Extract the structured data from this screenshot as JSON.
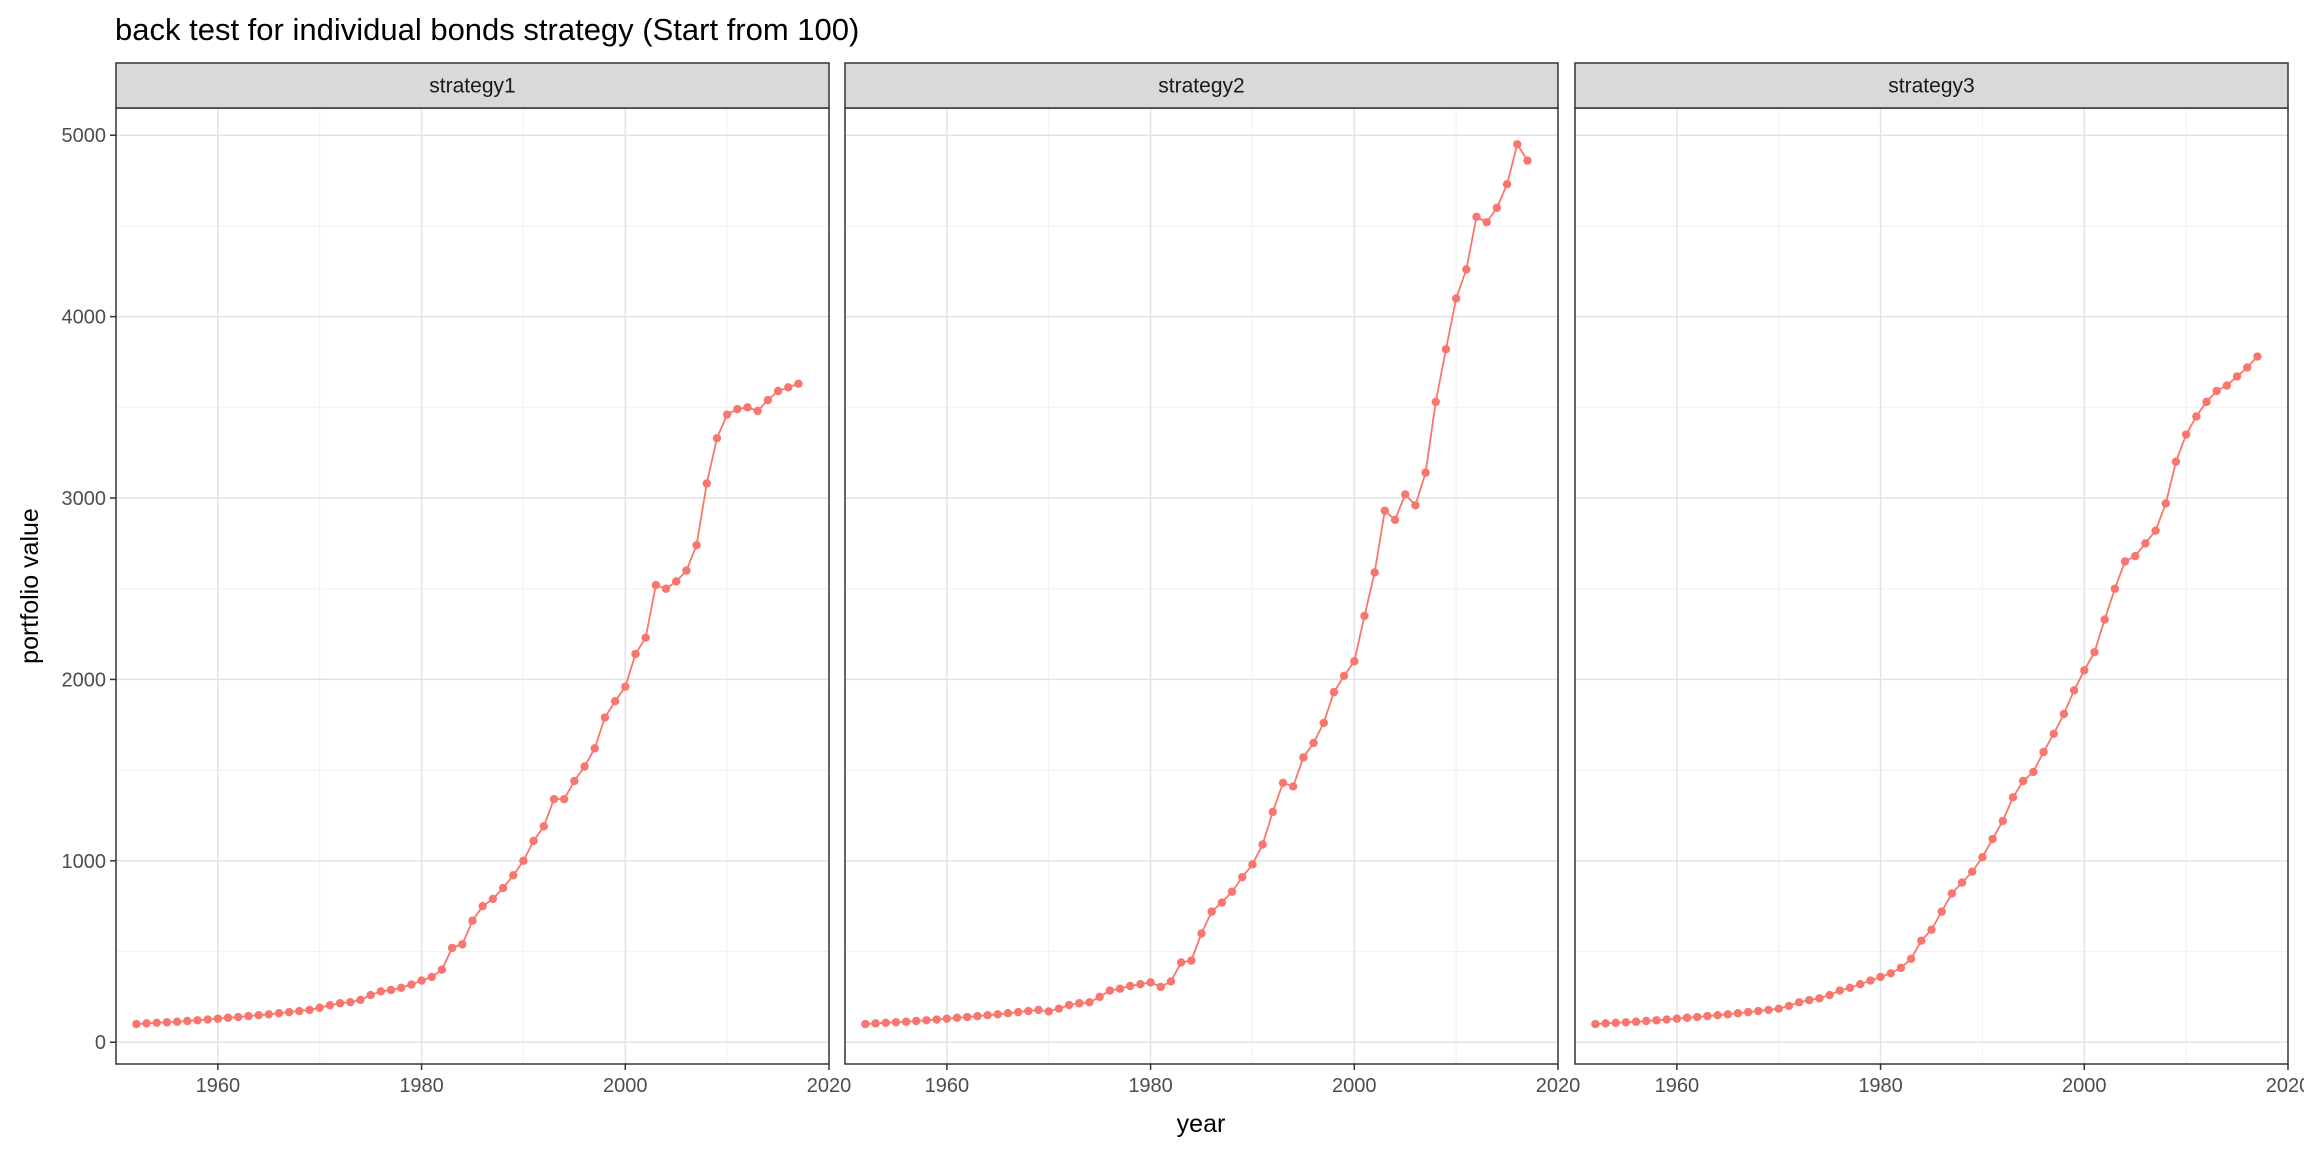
{
  "chart_data": {
    "type": "line",
    "title": "back test for individual bonds strategy (Start from 100)",
    "xlabel": "year",
    "ylabel": "portfolio value",
    "xlim": [
      1950,
      2020
    ],
    "ylim": [
      -120,
      5150
    ],
    "x_ticks": [
      1960,
      1980,
      2000,
      2020
    ],
    "y_ticks": [
      0,
      1000,
      2000,
      3000,
      4000,
      5000
    ],
    "grid": true,
    "markers": "points",
    "line_color": "#F8766D",
    "strip_color": "#D9D9D9",
    "x": [
      1952,
      1953,
      1954,
      1955,
      1956,
      1957,
      1958,
      1959,
      1960,
      1961,
      1962,
      1963,
      1964,
      1965,
      1966,
      1967,
      1968,
      1969,
      1970,
      1971,
      1972,
      1973,
      1974,
      1975,
      1976,
      1977,
      1978,
      1979,
      1980,
      1981,
      1982,
      1983,
      1984,
      1985,
      1986,
      1987,
      1988,
      1989,
      1990,
      1991,
      1992,
      1993,
      1994,
      1995,
      1996,
      1997,
      1998,
      1999,
      2000,
      2001,
      2002,
      2003,
      2004,
      2005,
      2006,
      2007,
      2008,
      2009,
      2010,
      2011,
      2012,
      2013,
      2014,
      2015,
      2016,
      2017
    ],
    "series": [
      {
        "panel": "strategy1",
        "values": [
          100,
          104,
          107,
          110,
          113,
          117,
          121,
          125,
          130,
          135,
          139,
          144,
          149,
          154,
          160,
          166,
          172,
          178,
          190,
          204,
          215,
          221,
          233,
          260,
          280,
          288,
          300,
          318,
          340,
          360,
          400,
          520,
          540,
          670,
          750,
          790,
          850,
          920,
          1000,
          1110,
          1190,
          1340,
          1340,
          1440,
          1520,
          1620,
          1790,
          1880,
          1960,
          2140,
          2230,
          2520,
          2500,
          2540,
          2600,
          2740,
          3080,
          3330,
          3460,
          3490,
          3500,
          3480,
          3540,
          3590,
          3610,
          3630
        ]
      },
      {
        "panel": "strategy2",
        "values": [
          100,
          104,
          107,
          110,
          113,
          117,
          121,
          125,
          130,
          135,
          139,
          144,
          149,
          154,
          160,
          166,
          172,
          178,
          170,
          185,
          205,
          215,
          220,
          250,
          285,
          295,
          310,
          320,
          330,
          305,
          335,
          440,
          450,
          600,
          720,
          770,
          830,
          910,
          980,
          1090,
          1270,
          1430,
          1410,
          1570,
          1650,
          1760,
          1930,
          2020,
          2100,
          2350,
          2590,
          2930,
          2880,
          3020,
          2960,
          3140,
          3530,
          3820,
          4100,
          4260,
          4550,
          4520,
          4600,
          4730,
          4950,
          4860
        ]
      },
      {
        "panel": "strategy3",
        "values": [
          100,
          104,
          107,
          110,
          113,
          117,
          121,
          125,
          130,
          135,
          139,
          144,
          149,
          154,
          160,
          166,
          172,
          178,
          185,
          200,
          220,
          232,
          242,
          260,
          285,
          300,
          320,
          340,
          360,
          380,
          410,
          460,
          560,
          620,
          720,
          820,
          880,
          940,
          1020,
          1120,
          1220,
          1350,
          1440,
          1490,
          1600,
          1700,
          1810,
          1940,
          2050,
          2150,
          2330,
          2500,
          2650,
          2680,
          2750,
          2820,
          2970,
          3200,
          3350,
          3450,
          3530,
          3590,
          3620,
          3670,
          3720,
          3780
        ]
      }
    ]
  }
}
